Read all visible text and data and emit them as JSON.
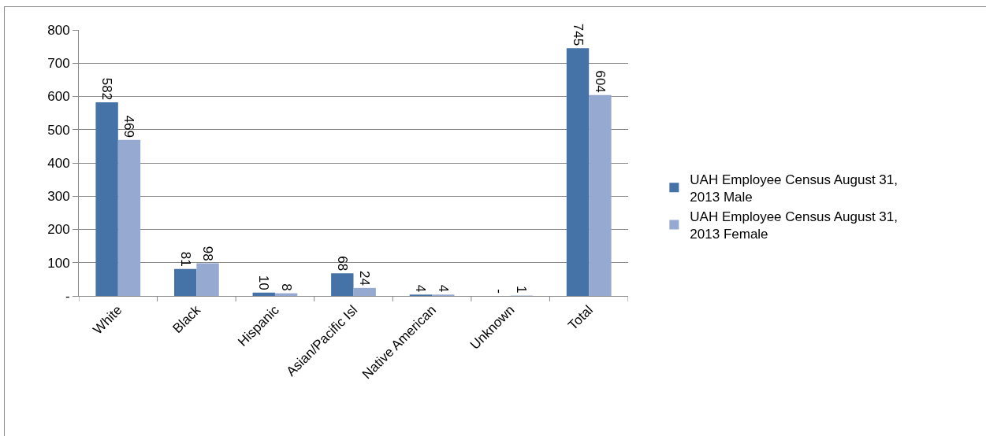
{
  "chart_data": {
    "type": "bar",
    "categories": [
      "White",
      "Black",
      "Hispanic",
      "Asian/Pacific Isl",
      "Native American",
      "Unknown",
      "Total"
    ],
    "series": [
      {
        "name": "UAH Employee Census August 31, 2013 Male",
        "color": "#4572a7",
        "values": [
          582,
          81,
          10,
          68,
          4,
          0,
          745
        ],
        "value_labels": [
          "582",
          "81",
          "10",
          "68",
          "4",
          "-",
          "745"
        ]
      },
      {
        "name": "UAH Employee Census August 31, 2013 Female",
        "color": "#95a9d1",
        "values": [
          469,
          98,
          8,
          24,
          4,
          1,
          604
        ],
        "value_labels": [
          "469",
          "98",
          "8",
          "24",
          "4",
          "1",
          "604"
        ]
      }
    ],
    "ylim": [
      0,
      800
    ],
    "yticks": [
      {
        "value": 0,
        "label": "-"
      },
      100,
      200,
      300,
      400,
      500,
      600,
      700,
      800
    ],
    "grid": "y",
    "legend": "right"
  }
}
